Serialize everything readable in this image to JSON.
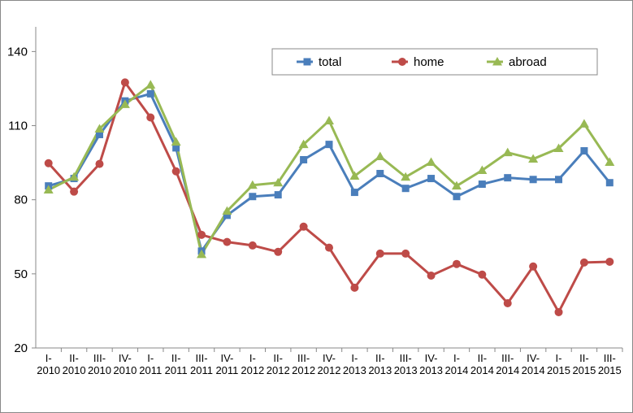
{
  "chart_data": {
    "type": "line",
    "categories": [
      [
        "I-",
        "2010"
      ],
      [
        "II-",
        "2010"
      ],
      [
        "III-",
        "2010"
      ],
      [
        "IV-",
        "2010"
      ],
      [
        "I-",
        "2011"
      ],
      [
        "II-",
        "2011"
      ],
      [
        "III-",
        "2011"
      ],
      [
        "IV-",
        "2011"
      ],
      [
        "I-",
        "2012"
      ],
      [
        "II-",
        "2012"
      ],
      [
        "III-",
        "2012"
      ],
      [
        "IV-",
        "2012"
      ],
      [
        "I-",
        "2013"
      ],
      [
        "II-",
        "2013"
      ],
      [
        "III-",
        "2013"
      ],
      [
        "IV-",
        "2013"
      ],
      [
        "I-",
        "2014"
      ],
      [
        "II-",
        "2014"
      ],
      [
        "III-",
        "2014"
      ],
      [
        "IV-",
        "2014"
      ],
      [
        "I-",
        "2015"
      ],
      [
        "II-",
        "2015"
      ],
      [
        "III-",
        "2015"
      ]
    ],
    "series": [
      {
        "name": "total",
        "color": "#4a7ebb",
        "marker": "square",
        "values": [
          85.6,
          88.6,
          106.4,
          120,
          122.9,
          101,
          59.2,
          73.7,
          81.3,
          82,
          96.2,
          102.4,
          83,
          90.6,
          84.6,
          88.6,
          81.3,
          86.3,
          88.9,
          88.2,
          88.2,
          99.8,
          86.9
        ]
      },
      {
        "name": "home",
        "color": "#be4b48",
        "marker": "circle",
        "values": [
          94.8,
          83.3,
          94.5,
          127.5,
          113.3,
          91.5,
          65.8,
          62.9,
          61.5,
          58.9,
          69.1,
          60.6,
          44.4,
          58.2,
          58.2,
          49.3,
          54,
          49.7,
          38.1,
          53,
          34.5,
          54.6,
          54.9
        ]
      },
      {
        "name": "abroad",
        "color": "#98b954",
        "marker": "triangle",
        "values": [
          84,
          89.2,
          108.7,
          118.6,
          126.5,
          103.4,
          57.9,
          75.4,
          85.9,
          86.9,
          102.4,
          112,
          89.6,
          97.5,
          89.2,
          95.2,
          85.6,
          91.9,
          99.1,
          96.5,
          100.8,
          110.7,
          95.2
        ]
      }
    ],
    "ylim": [
      20,
      150
    ],
    "yticks": [
      20,
      50,
      80,
      110,
      140
    ],
    "grid": false,
    "legend": "top-right"
  }
}
